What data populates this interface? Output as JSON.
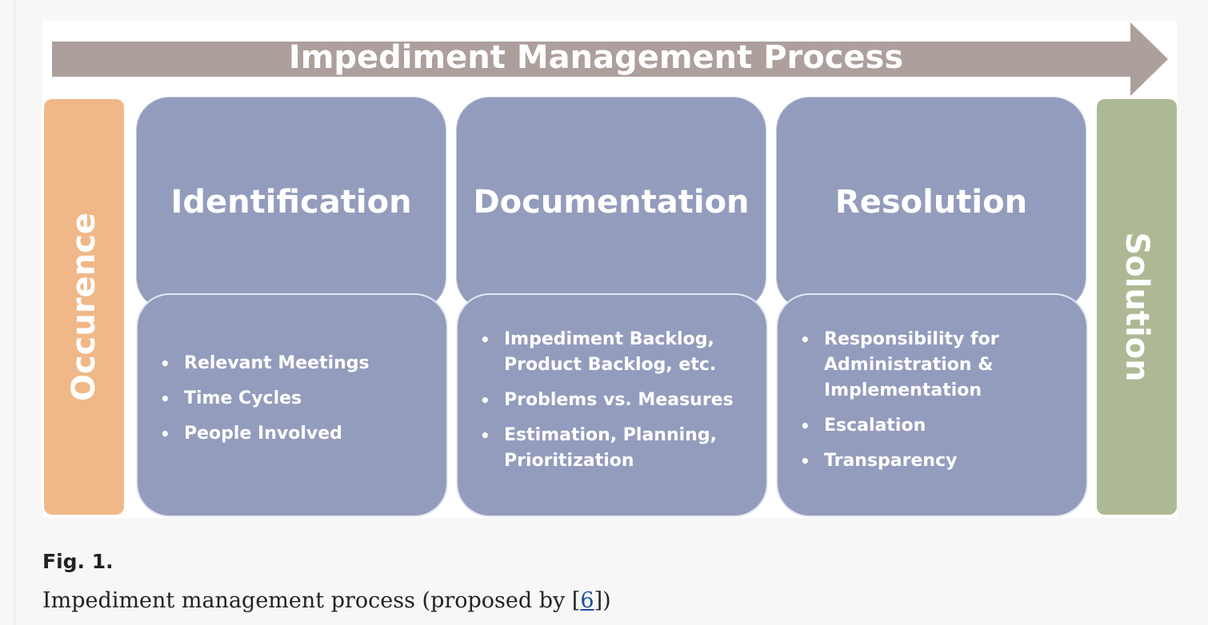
{
  "diagram": {
    "banner_title": "Impediment Management Process",
    "start_label": "Occurence",
    "end_label": "Solution",
    "stages": [
      {
        "title": "Identification",
        "bullets": [
          "Relevant Meetings",
          "Time Cycles",
          "People Involved"
        ]
      },
      {
        "title": "Documentation",
        "bullets": [
          "Impediment Backlog, Product Backlog, etc.",
          "Problems vs. Measures",
          "Estimation, Planning, Prioritization"
        ]
      },
      {
        "title": "Resolution",
        "bullets": [
          "Responsibility for Administration & Implementation",
          "Escalation",
          "Transparency"
        ]
      }
    ],
    "colors": {
      "banner": "#ad9f9c",
      "stage": "#949cbd",
      "start": "#f0b888",
      "end": "#adb994"
    }
  },
  "caption": {
    "label": "Fig. 1.",
    "text_before": "Impediment management process (proposed by [",
    "ref": "6",
    "text_after": "])"
  }
}
